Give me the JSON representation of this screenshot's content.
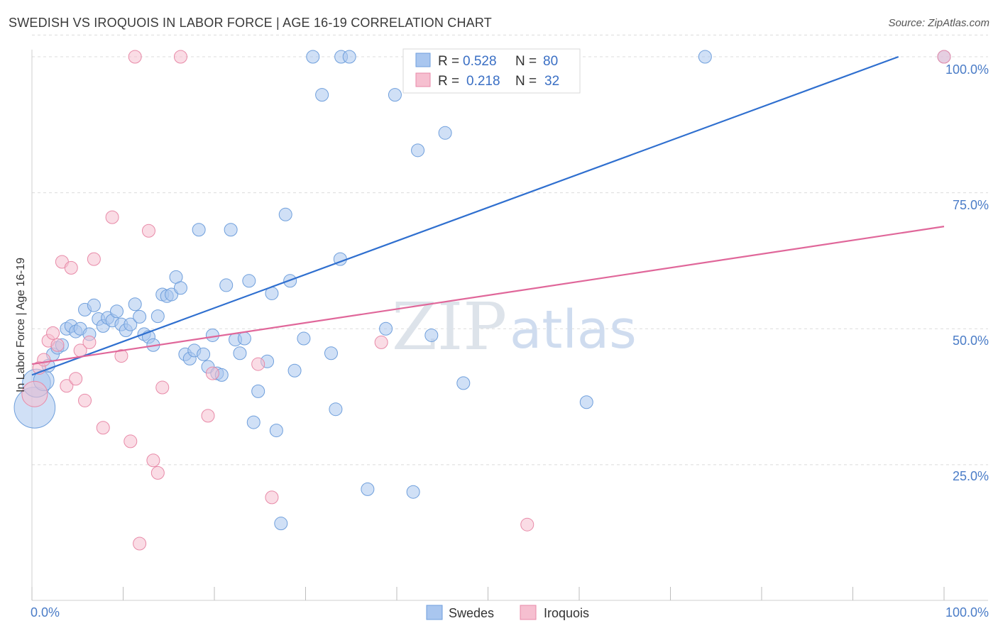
{
  "header": {
    "title": "SWEDISH VS IROQUOIS IN LABOR FORCE | AGE 16-19 CORRELATION CHART",
    "source": "Source: ZipAtlas.com"
  },
  "watermark": {
    "zip": "ZIP",
    "atlas": "atlas"
  },
  "legend_top": {
    "rows": [
      {
        "r_label": "R =",
        "r_value": "0.528",
        "n_label": "N =",
        "n_value": "80"
      },
      {
        "r_label": "R =",
        "r_value": "0.218",
        "n_label": "N =",
        "n_value": "32"
      }
    ]
  },
  "legend_bottom": {
    "items": [
      "Swedes",
      "Iroquois"
    ]
  },
  "colors": {
    "swedes_fill": "#a9c6ef",
    "swedes_stroke": "#6f9fdc",
    "swedes_line": "#2f6fcf",
    "iroquois_fill": "#f6bfd0",
    "iroquois_stroke": "#e88aa8",
    "iroquois_line": "#e0679a",
    "tick_text": "#4a7cc7",
    "grid": "#dcdcdc"
  },
  "chart_data": {
    "type": "scatter",
    "title": "SWEDISH VS IROQUOIS IN LABOR FORCE | AGE 16-19 CORRELATION CHART",
    "xlabel": "",
    "ylabel": "In Labor Force | Age 16-19",
    "xlim": [
      0,
      100
    ],
    "ylim": [
      0,
      104
    ],
    "x_tick_labels": [
      "0.0%",
      "100.0%"
    ],
    "y_ticks": [
      25,
      50,
      75,
      100
    ],
    "y_tick_labels": [
      "25.0%",
      "50.0%",
      "75.0%",
      "100.0%"
    ],
    "grid": true,
    "legend_placement": "top-center",
    "series": [
      {
        "name": "Swedes",
        "r": 0.528,
        "n": 80,
        "trend": {
          "x": [
            0,
            95
          ],
          "y": [
            41.5,
            100
          ]
        },
        "points": [
          {
            "x": 0.3,
            "y": 35.5,
            "s": 3.2
          },
          {
            "x": 0.5,
            "y": 40,
            "s": 2.2
          },
          {
            "x": 1.3,
            "y": 40.5,
            "s": 1.6
          },
          {
            "x": 1.8,
            "y": 43.2,
            "s": 1.0
          },
          {
            "x": 2.3,
            "y": 45.3,
            "s": 1.0
          },
          {
            "x": 2.8,
            "y": 46.5,
            "s": 1.0
          },
          {
            "x": 3.3,
            "y": 47,
            "s": 1.0
          },
          {
            "x": 3.8,
            "y": 50,
            "s": 1.0
          },
          {
            "x": 4.3,
            "y": 50.5,
            "s": 1.0
          },
          {
            "x": 4.8,
            "y": 49.5,
            "s": 1.0
          },
          {
            "x": 5.3,
            "y": 50,
            "s": 1.0
          },
          {
            "x": 5.8,
            "y": 53.5,
            "s": 1.0
          },
          {
            "x": 6.3,
            "y": 49,
            "s": 1.0
          },
          {
            "x": 6.8,
            "y": 54.3,
            "s": 1.0
          },
          {
            "x": 7.3,
            "y": 51.8,
            "s": 1.0
          },
          {
            "x": 7.8,
            "y": 50.5,
            "s": 1.0
          },
          {
            "x": 8.3,
            "y": 52,
            "s": 1.0
          },
          {
            "x": 8.8,
            "y": 51.5,
            "s": 1.0
          },
          {
            "x": 9.3,
            "y": 53.2,
            "s": 1.0
          },
          {
            "x": 9.8,
            "y": 50.8,
            "s": 1.0
          },
          {
            "x": 10.3,
            "y": 49.7,
            "s": 1.0
          },
          {
            "x": 10.8,
            "y": 50.8,
            "s": 1.0
          },
          {
            "x": 11.3,
            "y": 54.5,
            "s": 1.0
          },
          {
            "x": 11.8,
            "y": 52.2,
            "s": 1.0
          },
          {
            "x": 12.3,
            "y": 49,
            "s": 1.0
          },
          {
            "x": 12.8,
            "y": 48.5,
            "s": 1.0
          },
          {
            "x": 13.3,
            "y": 47,
            "s": 1.0
          },
          {
            "x": 13.8,
            "y": 52.3,
            "s": 1.0
          },
          {
            "x": 14.3,
            "y": 56.3,
            "s": 1.0
          },
          {
            "x": 14.8,
            "y": 56,
            "s": 1.0
          },
          {
            "x": 15.3,
            "y": 56.3,
            "s": 1.0
          },
          {
            "x": 15.8,
            "y": 59.5,
            "s": 1.0
          },
          {
            "x": 16.3,
            "y": 57.5,
            "s": 1.0
          },
          {
            "x": 16.8,
            "y": 45.3,
            "s": 1.0
          },
          {
            "x": 17.3,
            "y": 44.5,
            "s": 1.0
          },
          {
            "x": 17.8,
            "y": 46,
            "s": 1.0
          },
          {
            "x": 18.3,
            "y": 68.2,
            "s": 1.0
          },
          {
            "x": 18.8,
            "y": 45.3,
            "s": 1.0
          },
          {
            "x": 19.3,
            "y": 43,
            "s": 1.0
          },
          {
            "x": 19.8,
            "y": 48.8,
            "s": 1.0
          },
          {
            "x": 20.3,
            "y": 41.8,
            "s": 1.0
          },
          {
            "x": 20.8,
            "y": 41.5,
            "s": 1.0
          },
          {
            "x": 21.3,
            "y": 58,
            "s": 1.0
          },
          {
            "x": 21.8,
            "y": 68.2,
            "s": 1.0
          },
          {
            "x": 22.3,
            "y": 48,
            "s": 1.0
          },
          {
            "x": 22.8,
            "y": 45.5,
            "s": 1.0
          },
          {
            "x": 23.3,
            "y": 48.2,
            "s": 1.0
          },
          {
            "x": 23.8,
            "y": 58.8,
            "s": 1.0
          },
          {
            "x": 24.3,
            "y": 32.8,
            "s": 1.0
          },
          {
            "x": 24.8,
            "y": 38.5,
            "s": 1.0
          },
          {
            "x": 25.8,
            "y": 44,
            "s": 1.0
          },
          {
            "x": 26.3,
            "y": 56.5,
            "s": 1.0
          },
          {
            "x": 26.8,
            "y": 31.3,
            "s": 1.0
          },
          {
            "x": 27.3,
            "y": 14.2,
            "s": 1.0
          },
          {
            "x": 27.8,
            "y": 71,
            "s": 1.0
          },
          {
            "x": 28.3,
            "y": 58.8,
            "s": 1.0
          },
          {
            "x": 28.8,
            "y": 42.3,
            "s": 1.0
          },
          {
            "x": 29.8,
            "y": 48.2,
            "s": 1.0
          },
          {
            "x": 30.8,
            "y": 100,
            "s": 1.0
          },
          {
            "x": 31.8,
            "y": 93,
            "s": 1.0
          },
          {
            "x": 32.8,
            "y": 45.5,
            "s": 1.0
          },
          {
            "x": 33.3,
            "y": 35.2,
            "s": 1.0
          },
          {
            "x": 33.8,
            "y": 62.8,
            "s": 1.0
          },
          {
            "x": 33.9,
            "y": 100,
            "s": 1.0
          },
          {
            "x": 36.8,
            "y": 20.5,
            "s": 1.0
          },
          {
            "x": 38.8,
            "y": 50,
            "s": 1.0
          },
          {
            "x": 39.8,
            "y": 93,
            "s": 1.0
          },
          {
            "x": 41.8,
            "y": 20,
            "s": 1.0
          },
          {
            "x": 42.3,
            "y": 82.8,
            "s": 1.0
          },
          {
            "x": 43.8,
            "y": 48.8,
            "s": 1.0
          },
          {
            "x": 44.8,
            "y": 100,
            "s": 1.0
          },
          {
            "x": 45.3,
            "y": 86,
            "s": 1.0
          },
          {
            "x": 45.3,
            "y": 100,
            "s": 1.0
          },
          {
            "x": 47.3,
            "y": 40,
            "s": 1.0
          },
          {
            "x": 56.8,
            "y": 100,
            "s": 1.0
          },
          {
            "x": 58.8,
            "y": 100,
            "s": 1.0
          },
          {
            "x": 60.8,
            "y": 36.5,
            "s": 1.0
          },
          {
            "x": 73.8,
            "y": 100,
            "s": 1.0
          },
          {
            "x": 100,
            "y": 100,
            "s": 1.0
          },
          {
            "x": 34.8,
            "y": 100,
            "s": 1.0
          }
        ]
      },
      {
        "name": "Iroquois",
        "r": 0.218,
        "n": 32,
        "trend": {
          "x": [
            0,
            100
          ],
          "y": [
            43.5,
            68.8
          ]
        },
        "points": [
          {
            "x": 0.3,
            "y": 38,
            "s": 2.0
          },
          {
            "x": 0.8,
            "y": 42.8,
            "s": 1.0
          },
          {
            "x": 1.3,
            "y": 44.3,
            "s": 1.0
          },
          {
            "x": 1.8,
            "y": 47.8,
            "s": 1.0
          },
          {
            "x": 2.3,
            "y": 49.2,
            "s": 1.0
          },
          {
            "x": 2.8,
            "y": 47,
            "s": 1.0
          },
          {
            "x": 3.3,
            "y": 62.3,
            "s": 1.0
          },
          {
            "x": 3.8,
            "y": 39.5,
            "s": 1.0
          },
          {
            "x": 4.3,
            "y": 61.2,
            "s": 1.0
          },
          {
            "x": 4.8,
            "y": 40.8,
            "s": 1.0
          },
          {
            "x": 5.3,
            "y": 46,
            "s": 1.0
          },
          {
            "x": 5.8,
            "y": 36.8,
            "s": 1.0
          },
          {
            "x": 6.3,
            "y": 47.5,
            "s": 1.0
          },
          {
            "x": 6.8,
            "y": 62.8,
            "s": 1.0
          },
          {
            "x": 7.8,
            "y": 31.8,
            "s": 1.0
          },
          {
            "x": 8.8,
            "y": 70.5,
            "s": 1.0
          },
          {
            "x": 9.8,
            "y": 45,
            "s": 1.0
          },
          {
            "x": 10.8,
            "y": 29.3,
            "s": 1.0
          },
          {
            "x": 11.3,
            "y": 100,
            "s": 1.0
          },
          {
            "x": 11.8,
            "y": 10.5,
            "s": 1.0
          },
          {
            "x": 12.8,
            "y": 68,
            "s": 1.0
          },
          {
            "x": 13.3,
            "y": 25.8,
            "s": 1.0
          },
          {
            "x": 13.8,
            "y": 23.5,
            "s": 1.0
          },
          {
            "x": 14.3,
            "y": 39.2,
            "s": 1.0
          },
          {
            "x": 16.3,
            "y": 100,
            "s": 1.0
          },
          {
            "x": 19.3,
            "y": 34,
            "s": 1.0
          },
          {
            "x": 19.8,
            "y": 41.8,
            "s": 1.0
          },
          {
            "x": 24.8,
            "y": 43.5,
            "s": 1.0
          },
          {
            "x": 26.3,
            "y": 19,
            "s": 1.0
          },
          {
            "x": 38.3,
            "y": 47.5,
            "s": 1.0
          },
          {
            "x": 54.3,
            "y": 14,
            "s": 1.0
          },
          {
            "x": 100,
            "y": 100,
            "s": 1.0
          }
        ]
      }
    ]
  }
}
